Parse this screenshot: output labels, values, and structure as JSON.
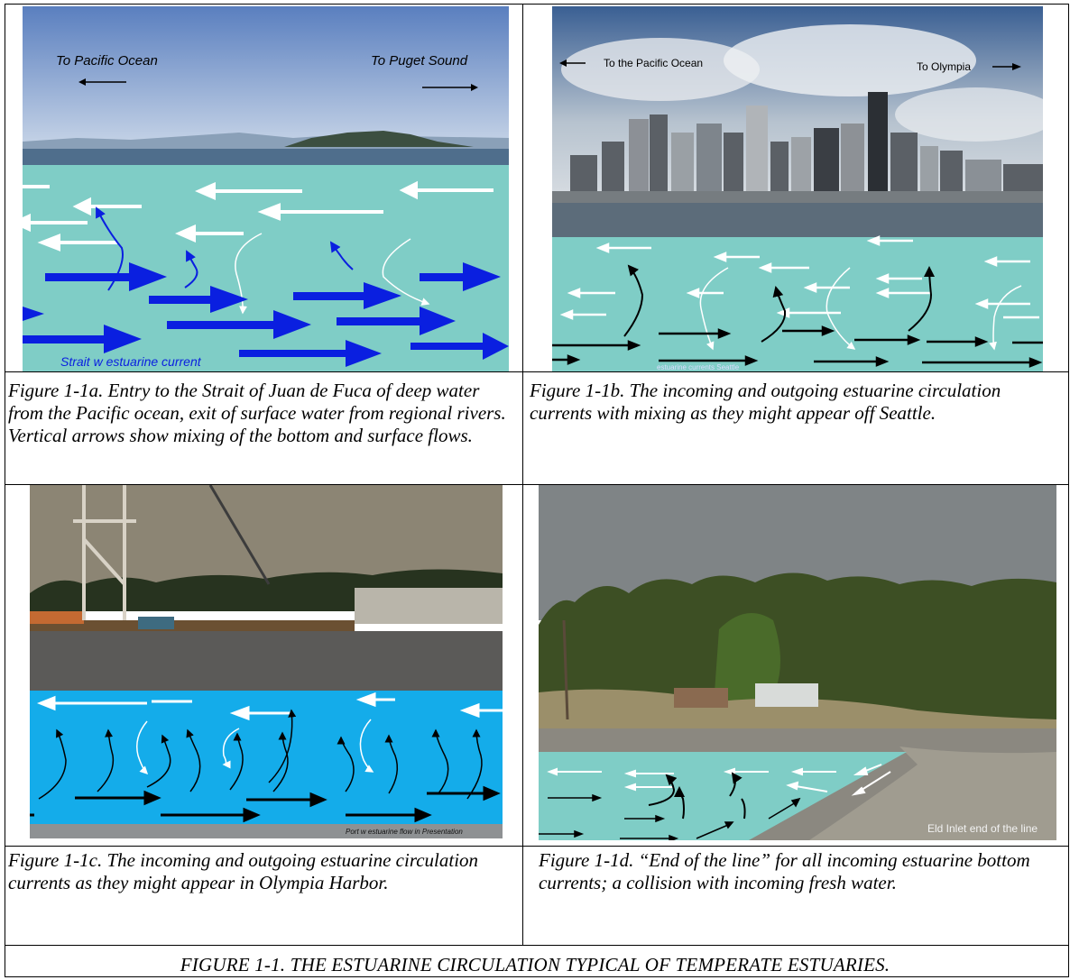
{
  "panels": {
    "a": {
      "label_left": "To Pacific Ocean",
      "label_right": "To Puget Sound",
      "watermark": "Strait w estuarine current",
      "caption": "Figure 1-1a.  Entry to the Strait of Juan de Fuca of deep water from the Pacific ocean, exit of surface water from regional rivers. Vertical arrows show mixing of the bottom and surface flows."
    },
    "b": {
      "label_left": "To the Pacific Ocean",
      "label_right": "To Olympia",
      "watermark": "estuarine currents Seattle",
      "caption": "Figure 1-1b.  The incoming and outgoing estuarine circulation currents with mixing as they might appear off Seattle."
    },
    "c": {
      "watermark": "Port w estuarine flow in Presentation",
      "caption": "Figure 1-1c.  The incoming and outgoing estuarine circulation currents as they might appear in Olympia Harbor."
    },
    "d": {
      "watermark": "Eld Inlet end of the line",
      "caption": "Figure 1-1d.  “End of the line” for all incoming estuarine bottom currents; a collision with incoming fresh water."
    }
  },
  "figure_title": "FIGURE 1-1. THE ESTUARINE CIRCULATION TYPICAL OF TEMPERATE ESTUARIES.",
  "colors": {
    "water_teal": "#7fcdc6",
    "water_blue": "#14acea",
    "deep_arrow": "#0a1fe0",
    "surface_arrow": "#ffffff",
    "bottom_arrow": "#000000"
  }
}
